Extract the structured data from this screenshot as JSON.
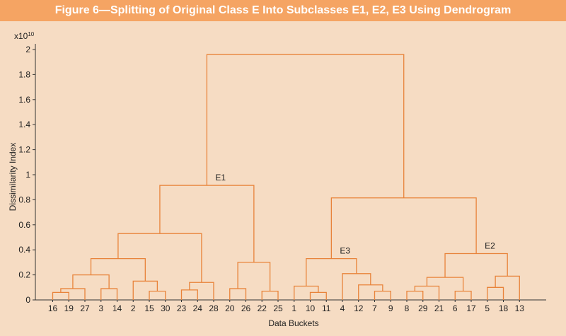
{
  "title": "Figure 6—Splitting of Original Class E Into Subclasses E1, E2, E3 Using Dendrogram",
  "chart_data": {
    "type": "dendrogram",
    "xlabel": "Data Buckets",
    "ylabel": "Dissimilarity Index",
    "y_multiplier": "x10",
    "y_multiplier_exp": "10",
    "ylim": [
      0,
      2
    ],
    "yticks": [
      "0",
      "0.2",
      "0.4",
      "0.6",
      "0.8",
      "1",
      "1.2",
      "1.4",
      "1.6",
      "1.8",
      "2"
    ],
    "leaves": [
      "16",
      "19",
      "27",
      "3",
      "14",
      "2",
      "15",
      "30",
      "23",
      "24",
      "28",
      "20",
      "26",
      "22",
      "25",
      "1",
      "10",
      "11",
      "4",
      "12",
      "7",
      "9",
      "8",
      "29",
      "21",
      "6",
      "17",
      "5",
      "18",
      "13"
    ],
    "merges": [
      {
        "a": "L:16",
        "b": "L:19",
        "h": 0.06
      },
      {
        "a": "M:0",
        "b": "L:27",
        "h": 0.09
      },
      {
        "a": "L:3",
        "b": "L:14",
        "h": 0.09
      },
      {
        "a": "M:1",
        "b": "M:2",
        "h": 0.2
      },
      {
        "a": "L:15",
        "b": "L:30",
        "h": 0.07
      },
      {
        "a": "L:2",
        "b": "M:4",
        "h": 0.15
      },
      {
        "a": "M:3",
        "b": "M:5",
        "h": 0.33
      },
      {
        "a": "L:23",
        "b": "L:24",
        "h": 0.08
      },
      {
        "a": "M:7",
        "b": "L:28",
        "h": 0.14
      },
      {
        "a": "M:6",
        "b": "M:8",
        "h": 0.53
      },
      {
        "a": "L:20",
        "b": "L:26",
        "h": 0.09
      },
      {
        "a": "L:22",
        "b": "L:25",
        "h": 0.07
      },
      {
        "a": "M:10",
        "b": "M:11",
        "h": 0.3
      },
      {
        "a": "M:9",
        "b": "M:12",
        "h": 0.915
      },
      {
        "a": "L:10",
        "b": "L:11",
        "h": 0.06
      },
      {
        "a": "L:1",
        "b": "M:14",
        "h": 0.11
      },
      {
        "a": "L:7",
        "b": "L:9",
        "h": 0.07
      },
      {
        "a": "L:12",
        "b": "M:16",
        "h": 0.12
      },
      {
        "a": "L:4",
        "b": "M:17",
        "h": 0.21
      },
      {
        "a": "M:15",
        "b": "M:18",
        "h": 0.33
      },
      {
        "a": "L:8",
        "b": "L:29",
        "h": 0.07
      },
      {
        "a": "M:20",
        "b": "L:21",
        "h": 0.11
      },
      {
        "a": "L:6",
        "b": "L:17",
        "h": 0.07
      },
      {
        "a": "M:21",
        "b": "M:22",
        "h": 0.18
      },
      {
        "a": "L:5",
        "b": "L:18",
        "h": 0.1
      },
      {
        "a": "M:24",
        "b": "L:13",
        "h": 0.19
      },
      {
        "a": "M:23",
        "b": "M:25",
        "h": 0.37
      },
      {
        "a": "M:19",
        "b": "M:26",
        "h": 0.815
      },
      {
        "a": "M:13",
        "b": "M:27",
        "h": 1.96
      }
    ],
    "cluster_labels": [
      {
        "text": "E1",
        "merge": 13
      },
      {
        "text": "E3",
        "merge": 19
      },
      {
        "text": "E2",
        "merge": 26
      }
    ],
    "line_color": "#e8833a",
    "background": "#f6dcc3",
    "title_bar_color": "#f5a463"
  }
}
